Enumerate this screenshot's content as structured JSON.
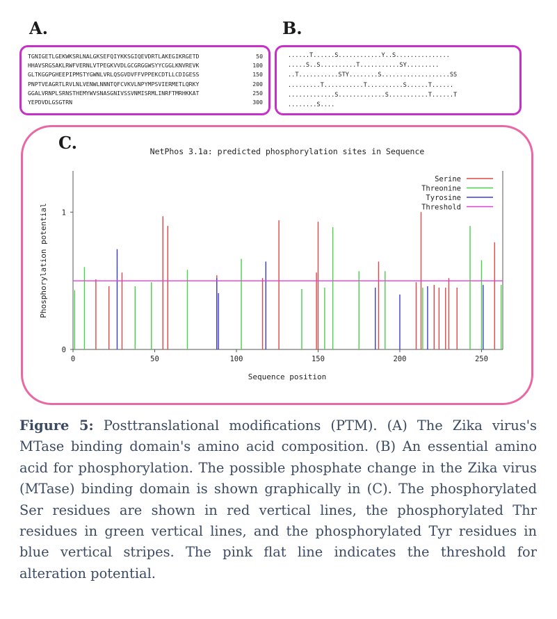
{
  "panels": {
    "a_label": "A.",
    "b_label": "B.",
    "c_label": "C."
  },
  "panel_a": {
    "lines": [
      {
        "seq": "TGNIGETLGEKWKSRLNALGKSEFQIYKKSGIQEVDRTLAKEGIKRGETD",
        "num": "50"
      },
      {
        "seq": "HHAVSRGSAKLRWFVERNLVTPEGKVVDLGCGRGGWSYYCGGLKNVREVK",
        "num": "100"
      },
      {
        "seq": "GLTKGGPGHEEPIPMSTYGWNLVRLQSGVDVFFVPPEKCDTLLCDIGESS",
        "num": "150"
      },
      {
        "seq": "PNPTVEAGRTLRVLNLVENWLNNNTQFCVKVLNPYMPSVIERMETLQRKY",
        "num": "200"
      },
      {
        "seq": "GGALVRNPLSRNSTHEMYWVSNASGNIVSSVNMISRMLINRFTMRHKKAT",
        "num": "250"
      },
      {
        "seq": "YEPDVDLGSGTRN",
        "num": "300"
      }
    ]
  },
  "panel_b": {
    "lines": [
      "......T......S............Y..S...............",
      ".....S..S..........T...........SY.........",
      "..T...........STY........S...................SS",
      ".........T...........T..........S......T......",
      ".............S.............S...........T......T",
      "........S...."
    ]
  },
  "chart_data": {
    "type": "bar",
    "title": "NetPhos 3.1a: predicted phosphorylation sites in Sequence",
    "xlabel": "Sequence position",
    "ylabel": "Phosphorylation potential",
    "xlim": [
      0,
      263
    ],
    "ylim": [
      0,
      1.3
    ],
    "xticks": [
      "0",
      "50",
      "100",
      "150",
      "200",
      "250"
    ],
    "xtick_values": [
      0,
      50,
      100,
      150,
      200,
      250
    ],
    "yticks": [
      "0",
      "1"
    ],
    "ytick_values": [
      0,
      1
    ],
    "threshold": 0.5,
    "legend_position": "top-right",
    "series": [
      {
        "name": "Serine",
        "color": "#e04646",
        "x": [
          14,
          22,
          30,
          55,
          58,
          88,
          116,
          126,
          149,
          150,
          187,
          210,
          213,
          221,
          224,
          228,
          230,
          235,
          258
        ],
        "values": [
          0.51,
          0.46,
          0.56,
          0.97,
          0.9,
          0.54,
          0.52,
          0.94,
          0.56,
          0.93,
          0.64,
          0.49,
          1.0,
          0.47,
          0.45,
          0.45,
          0.52,
          0.45,
          0.78
        ]
      },
      {
        "name": "Threonine",
        "color": "#46d146",
        "x": [
          1,
          7,
          38,
          48,
          70,
          103,
          140,
          154,
          159,
          175,
          191,
          214,
          243,
          250,
          262
        ],
        "values": [
          0.43,
          0.6,
          0.46,
          0.49,
          0.58,
          0.66,
          0.44,
          0.45,
          0.89,
          0.57,
          0.57,
          0.45,
          0.9,
          0.65,
          0.47
        ]
      },
      {
        "name": "Tyrosine",
        "color": "#3a3ad6",
        "x": [
          27,
          88,
          89,
          118,
          185,
          200,
          217,
          251
        ],
        "values": [
          0.73,
          0.52,
          0.41,
          0.64,
          0.45,
          0.4,
          0.46,
          0.47
        ]
      },
      {
        "name": "Threshold",
        "color": "#e040e0",
        "values": [
          0.5
        ]
      }
    ]
  },
  "caption": {
    "figure_label": "Figure 5:",
    "text": " Posttranslational modifications (PTM). (A) The Zika virus's MTase binding domain's amino acid composition. (B) An essential amino acid for phosphorylation. The possible phosphate change in the Zika virus (MTase) binding domain is shown graphically in (C). The phosphorylated Ser residues are shown in red vertical lines, the phosphorylated Thr residues in green vertical lines, and the phosphorylated Tyr residues in blue vertical stripes. The pink flat line indicates the threshold for alteration potential."
  }
}
